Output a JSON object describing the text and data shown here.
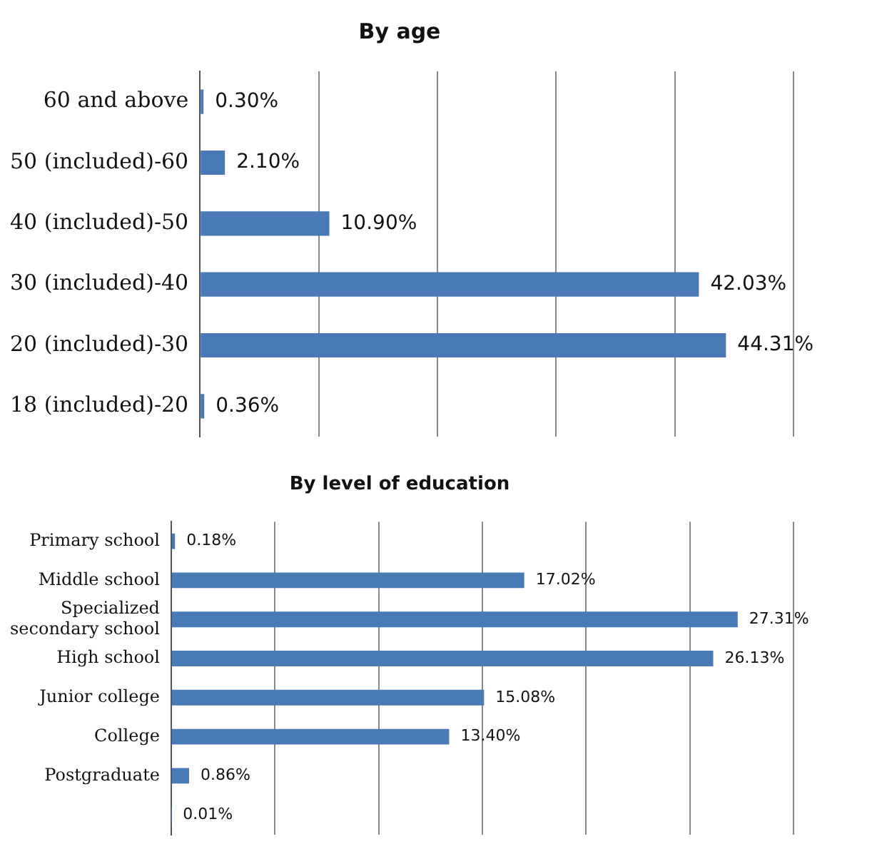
{
  "chart_data": [
    {
      "type": "bar",
      "orientation": "horizontal",
      "title": "By age",
      "categories": [
        "60 and above",
        "50 (included)-60",
        "40 (included)-50",
        "30 (included)-40",
        "20 (included)-30",
        "18 (included)-20"
      ],
      "values": [
        0.3,
        2.1,
        10.9,
        42.03,
        44.31,
        0.36
      ],
      "value_labels": [
        "0.30%",
        "2.10%",
        "10.90%",
        "42.03%",
        "44.31%",
        "0.36%"
      ],
      "color": "#4a7ab5",
      "xlim": [
        0,
        50
      ],
      "xticks": [
        {
          "value": 0,
          "label": null
        },
        {
          "value": 10,
          "label": null
        },
        {
          "value": 20,
          "label": null
        },
        {
          "value": 30,
          "label": null
        },
        {
          "value": 40,
          "label": null
        },
        {
          "value": 50,
          "label": null
        }
      ],
      "grid": "x",
      "tick_labels": "y",
      "legend": false
    },
    {
      "type": "bar",
      "orientation": "horizontal",
      "title": "By level of education",
      "categories": [
        "Primary school",
        "Middle school",
        [
          "Specialized",
          "secondary school"
        ],
        "High school",
        "Junior college",
        "College",
        "Postgraduate",
        null
      ],
      "values": [
        0.18,
        17.02,
        27.31,
        26.13,
        15.08,
        13.4,
        0.86,
        0.01
      ],
      "value_labels": [
        "0.18%",
        "17.02%",
        "27.31%",
        "26.13%",
        "15.08%",
        "13.40%",
        "0.86%",
        "0.01%"
      ],
      "color": "#4a7ab5",
      "xlim": [
        0,
        30
      ],
      "xticks": [
        {
          "value": 0,
          "label": null
        },
        {
          "value": 5,
          "label": null
        },
        {
          "value": 10,
          "label": null
        },
        {
          "value": 15,
          "label": null
        },
        {
          "value": 20,
          "label": null
        },
        {
          "value": 25,
          "label": null
        },
        {
          "value": 30,
          "label": null
        }
      ],
      "grid": "x",
      "tick_labels": "y",
      "legend": false
    }
  ]
}
